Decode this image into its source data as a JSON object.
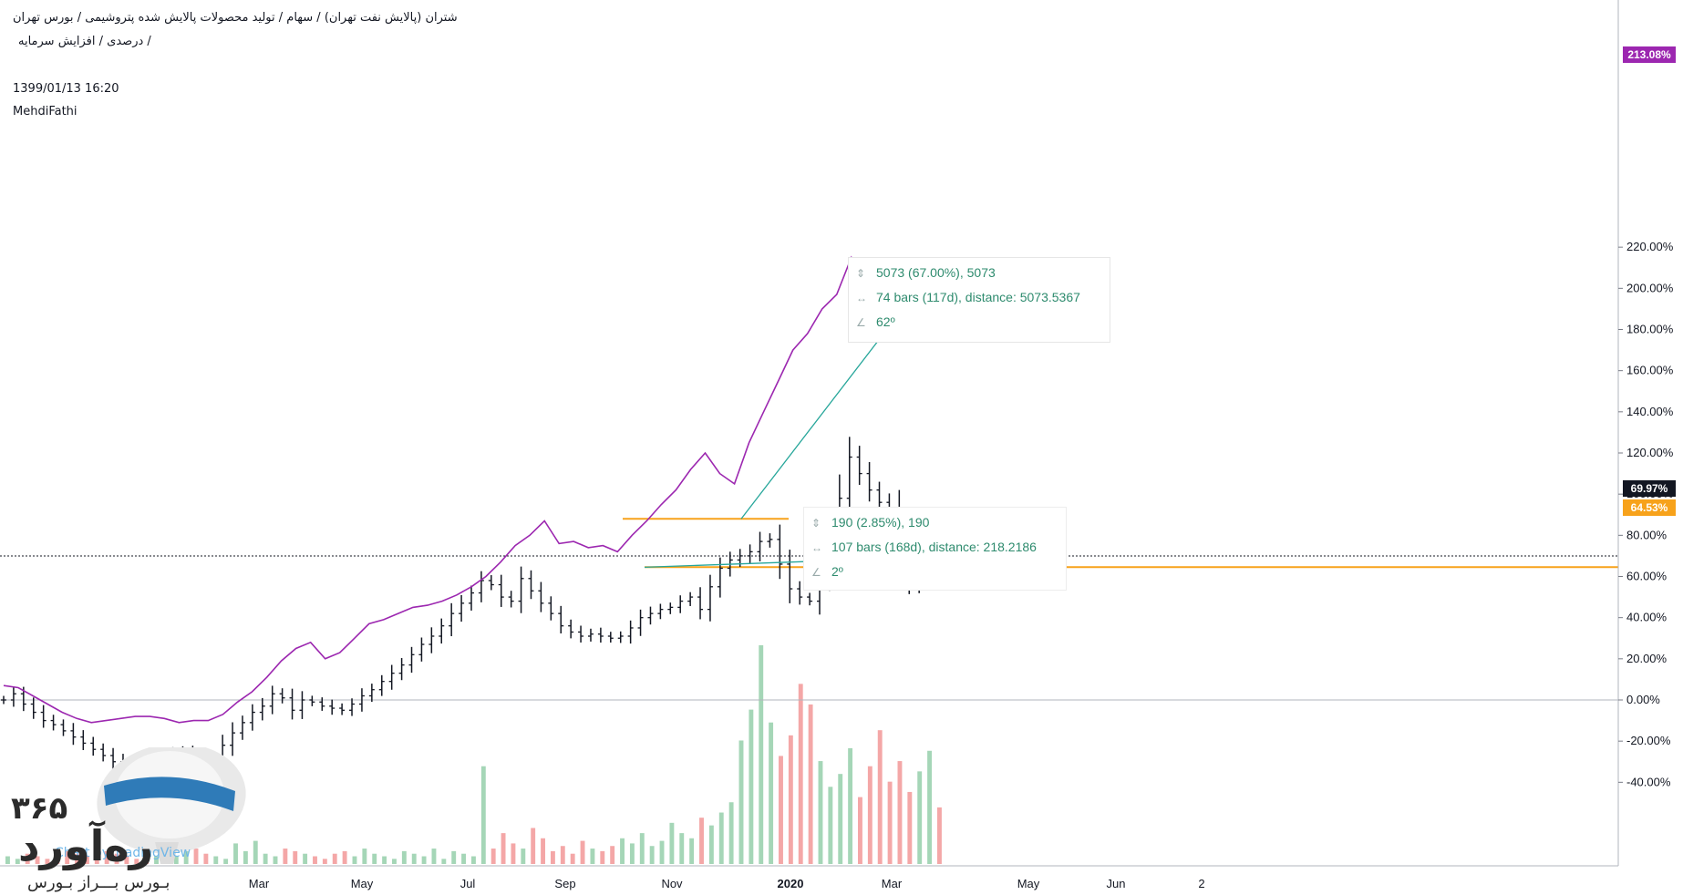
{
  "header": {
    "line1": "شتران (پالایش نفت تهران) / سهام / تولید محصولات پالایش شده پتروشیمی / بورس تهران",
    "line2": "درصدی / افزایش سرمایه /",
    "timestamp": "1399/01/13 16:20",
    "author": "MehdiFathi"
  },
  "colors": {
    "bars": "#131722",
    "compare_line": "#9c27b0",
    "volume_up": "#a5d6b7",
    "volume_down": "#f4a7a7",
    "orange_level": "#f7a21b",
    "trendline": "#26a69a",
    "measure_text": "#2e8b6e",
    "grid_zero": "#b2b5be"
  },
  "measure_upper": {
    "line1": "5073 (67.00%), 5073",
    "line2": "74 bars (117d), distance: 5073.5367",
    "line3": "62º"
  },
  "measure_lower": {
    "line1": "190 (2.85%), 190",
    "line2": "107 bars (168d), distance: 218.2186",
    "line3": "2º"
  },
  "price_tags": {
    "compare": "213.08%",
    "last": "69.97%",
    "level": "64.53%"
  },
  "logo": {
    "digits": "۳۶۵",
    "word": "رەآورد",
    "sub": "بـورس بـــراز بـورس",
    "ghost": "Chart by TradingView"
  },
  "chart_data": {
    "type": "line",
    "title": "",
    "xlabel": "",
    "ylabel": "",
    "y_unit": "%",
    "ylim": [
      -53,
      224
    ],
    "x_ticks": [
      "Mar",
      "May",
      "Jul",
      "Sep",
      "Nov",
      "2020",
      "Mar",
      "May",
      "Jun",
      "2"
    ],
    "y_ticks": [
      "220.00%",
      "200.00%",
      "180.00%",
      "160.00%",
      "140.00%",
      "120.00%",
      "100.00%",
      "80.00%",
      "60.00%",
      "40.00%",
      "20.00%",
      "0.00%",
      "-20.00%",
      "-40.00%"
    ],
    "series": [
      {
        "kind": "ohlc_close",
        "values": [
          0,
          3,
          -2,
          -6,
          -10,
          -12,
          -15,
          -18,
          -21,
          -24,
          -27,
          -30,
          -34,
          -38,
          -40,
          -36,
          -30,
          -26,
          -25,
          -27,
          -30,
          -28,
          -22,
          -16,
          -11,
          -6,
          -3,
          3,
          1,
          -5,
          0,
          -1,
          -3,
          -4,
          -5,
          -2,
          2,
          5,
          9,
          13,
          17,
          22,
          27,
          31,
          36,
          42,
          47,
          52,
          58,
          56,
          50,
          48,
          59,
          53,
          47,
          42,
          36,
          33,
          31,
          32,
          31,
          30,
          31,
          35,
          40,
          42,
          44,
          45,
          48,
          50,
          44,
          55,
          64,
          68,
          70,
          72,
          77,
          78,
          66,
          54,
          50,
          48,
          60,
          73,
          98,
          118,
          110,
          102,
          96,
          92,
          70,
          58,
          68,
          78,
          70
        ]
      },
      {
        "kind": "compare_line",
        "values": [
          7,
          6,
          2,
          -2,
          -6,
          -9,
          -11,
          -10,
          -9,
          -8,
          -8,
          -9,
          -11,
          -10,
          -10,
          -7,
          -1,
          4,
          11,
          19,
          25,
          28,
          20,
          23,
          30,
          37,
          39,
          42,
          45,
          46,
          48,
          51,
          55,
          60,
          67,
          75,
          80,
          87,
          76,
          77,
          74,
          75,
          72,
          80,
          87,
          95,
          102,
          112,
          120,
          110,
          105,
          125,
          140,
          155,
          170,
          178,
          190,
          197,
          215,
          200,
          193,
          185,
          190,
          205,
          213
        ]
      },
      {
        "kind": "volume_relative",
        "values": [
          3,
          2,
          4,
          3,
          2,
          3,
          5,
          4,
          3,
          6,
          5,
          4,
          3,
          2,
          4,
          3,
          2,
          3,
          5,
          6,
          4,
          3,
          2,
          8,
          5,
          9,
          4,
          3,
          6,
          5,
          4,
          3,
          2,
          4,
          5,
          3,
          6,
          4,
          3,
          2,
          5,
          4,
          3,
          6,
          2,
          5,
          4,
          3,
          38,
          6,
          12,
          8,
          6,
          14,
          10,
          5,
          7,
          4,
          9,
          6,
          5,
          7,
          10,
          8,
          12,
          7,
          9,
          16,
          12,
          10,
          18,
          15,
          20,
          24,
          48,
          60,
          85,
          55,
          42,
          50,
          70,
          62,
          40,
          30,
          35,
          45,
          26,
          38,
          52,
          32,
          40,
          28,
          36,
          44,
          22
        ]
      }
    ],
    "levels": [
      {
        "name": "resistance",
        "value": 88
      },
      {
        "name": "support",
        "value": 64.53
      },
      {
        "name": "last_price",
        "value": 69.97
      }
    ]
  }
}
